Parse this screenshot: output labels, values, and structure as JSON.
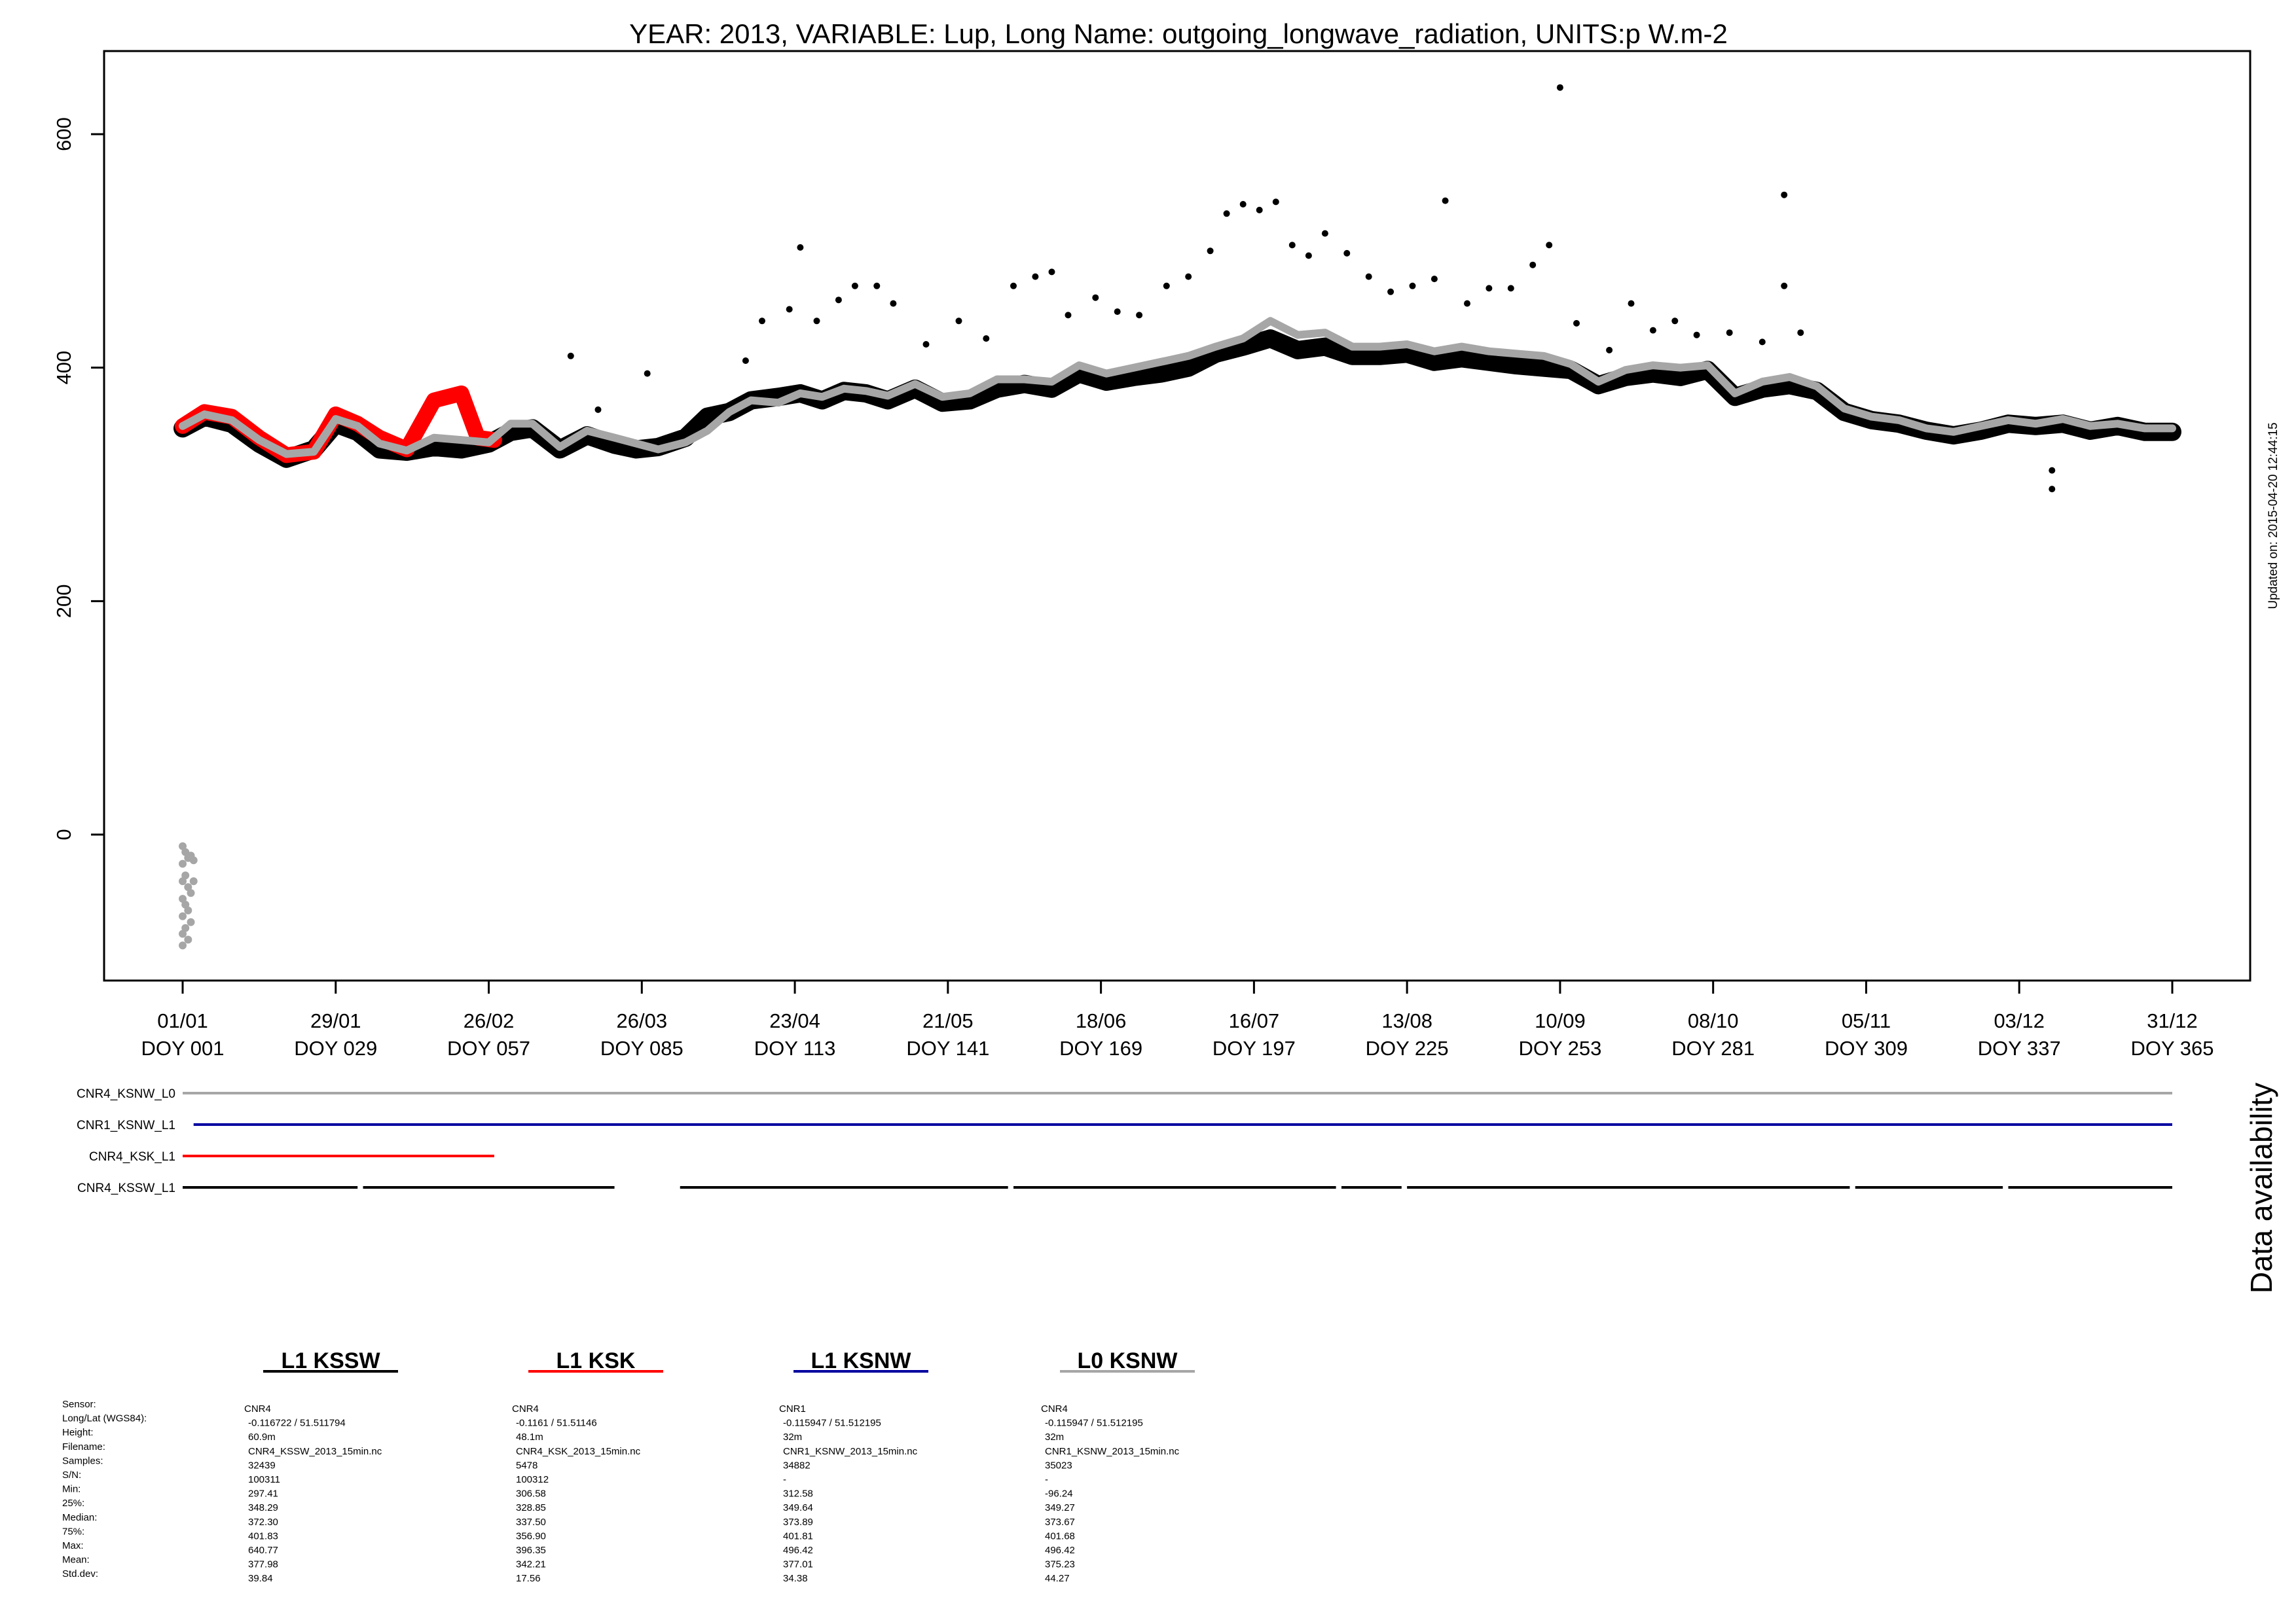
{
  "chart_data": {
    "type": "scatter",
    "title": "YEAR: 2013, VARIABLE: Lup, Long Name: outgoing_longwave_radiation, UNITS:p W.m-2",
    "ylim": [
      -155,
      670
    ],
    "y_ticks": [
      "0",
      "200",
      "400",
      "600"
    ],
    "y_tick_values": [
      0,
      200,
      400,
      600
    ],
    "xlim": [
      -8,
      376
    ],
    "x_ticks": [
      {
        "doy": 1,
        "date": "01/01",
        "label": "DOY 001"
      },
      {
        "doy": 29,
        "date": "29/01",
        "label": "DOY 029"
      },
      {
        "doy": 57,
        "date": "26/02",
        "label": "DOY 057"
      },
      {
        "doy": 85,
        "date": "26/03",
        "label": "DOY 085"
      },
      {
        "doy": 113,
        "date": "23/04",
        "label": "DOY 113"
      },
      {
        "doy": 141,
        "date": "21/05",
        "label": "DOY 141"
      },
      {
        "doy": 169,
        "date": "18/06",
        "label": "DOY 169"
      },
      {
        "doy": 197,
        "date": "16/07",
        "label": "DOY 197"
      },
      {
        "doy": 225,
        "date": "13/08",
        "label": "DOY 225"
      },
      {
        "doy": 253,
        "date": "10/09",
        "label": "DOY 253"
      },
      {
        "doy": 281,
        "date": "08/10",
        "label": "DOY 281"
      },
      {
        "doy": 309,
        "date": "05/11",
        "label": "DOY 309"
      },
      {
        "doy": 337,
        "date": "03/12",
        "label": "DOY 337"
      },
      {
        "doy": 365,
        "date": "31/12",
        "label": "DOY 365"
      }
    ],
    "grid": false,
    "updated_label": "Updated on: 2015-04-20 12:44:15",
    "series": [
      {
        "name": "CNR4_KSSW_L1",
        "color": "#000000",
        "band_width": 28,
        "points": [
          [
            1,
            348
          ],
          [
            5,
            358
          ],
          [
            10,
            352
          ],
          [
            15,
            335
          ],
          [
            20,
            322
          ],
          [
            25,
            330
          ],
          [
            29,
            352
          ],
          [
            33,
            345
          ],
          [
            37,
            330
          ],
          [
            42,
            328
          ],
          [
            47,
            332
          ],
          [
            52,
            330
          ],
          [
            57,
            335
          ],
          [
            61,
            345
          ],
          [
            65,
            348
          ],
          [
            70,
            330
          ],
          [
            75,
            342
          ],
          [
            80,
            334
          ],
          [
            84,
            330
          ],
          [
            88,
            332
          ],
          [
            93,
            340
          ],
          [
            97,
            358
          ],
          [
            101,
            362
          ],
          [
            105,
            372
          ],
          [
            110,
            375
          ],
          [
            114,
            378
          ],
          [
            118,
            372
          ],
          [
            122,
            380
          ],
          [
            126,
            378
          ],
          [
            130,
            372
          ],
          [
            135,
            382
          ],
          [
            140,
            370
          ],
          [
            145,
            372
          ],
          [
            150,
            382
          ],
          [
            155,
            386
          ],
          [
            160,
            382
          ],
          [
            165,
            395
          ],
          [
            170,
            388
          ],
          [
            175,
            392
          ],
          [
            180,
            395
          ],
          [
            185,
            400
          ],
          [
            190,
            412
          ],
          [
            195,
            418
          ],
          [
            200,
            425
          ],
          [
            205,
            415
          ],
          [
            210,
            418
          ],
          [
            215,
            410
          ],
          [
            220,
            410
          ],
          [
            225,
            412
          ],
          [
            230,
            405
          ],
          [
            235,
            408
          ],
          [
            240,
            405
          ],
          [
            245,
            402
          ],
          [
            250,
            400
          ],
          [
            255,
            398
          ],
          [
            260,
            385
          ],
          [
            265,
            392
          ],
          [
            270,
            395
          ],
          [
            275,
            392
          ],
          [
            280,
            398
          ],
          [
            285,
            375
          ],
          [
            290,
            382
          ],
          [
            295,
            385
          ],
          [
            300,
            380
          ],
          [
            305,
            362
          ],
          [
            310,
            355
          ],
          [
            315,
            352
          ],
          [
            320,
            346
          ],
          [
            325,
            342
          ],
          [
            330,
            346
          ],
          [
            335,
            352
          ],
          [
            340,
            350
          ],
          [
            345,
            352
          ],
          [
            350,
            346
          ],
          [
            355,
            350
          ],
          [
            360,
            345
          ],
          [
            365,
            345
          ]
        ]
      },
      {
        "name": "CNR4_KSK_L1",
        "color": "#ff0000",
        "band_width": 24,
        "points": [
          [
            1,
            350
          ],
          [
            5,
            362
          ],
          [
            10,
            358
          ],
          [
            15,
            340
          ],
          [
            20,
            325
          ],
          [
            25,
            328
          ],
          [
            29,
            360
          ],
          [
            33,
            352
          ],
          [
            37,
            340
          ],
          [
            42,
            330
          ],
          [
            47,
            372
          ],
          [
            52,
            378
          ],
          [
            55,
            340
          ],
          [
            58,
            338
          ]
        ]
      },
      {
        "name": "CNR4_KSNW_L0",
        "color": "#a6a6a6",
        "band_width": 12,
        "points": [
          [
            1,
            350
          ],
          [
            5,
            360
          ],
          [
            10,
            355
          ],
          [
            15,
            338
          ],
          [
            20,
            326
          ],
          [
            25,
            328
          ],
          [
            29,
            356
          ],
          [
            33,
            350
          ],
          [
            37,
            335
          ],
          [
            42,
            329
          ],
          [
            47,
            340
          ],
          [
            52,
            338
          ],
          [
            57,
            336
          ],
          [
            61,
            352
          ],
          [
            65,
            352
          ],
          [
            70,
            332
          ],
          [
            75,
            346
          ],
          [
            80,
            340
          ],
          [
            84,
            335
          ],
          [
            88,
            330
          ],
          [
            93,
            336
          ],
          [
            97,
            346
          ],
          [
            101,
            362
          ],
          [
            105,
            372
          ],
          [
            110,
            370
          ],
          [
            114,
            378
          ],
          [
            118,
            375
          ],
          [
            122,
            382
          ],
          [
            126,
            380
          ],
          [
            130,
            376
          ],
          [
            135,
            386
          ],
          [
            140,
            375
          ],
          [
            145,
            378
          ],
          [
            150,
            390
          ],
          [
            155,
            390
          ],
          [
            160,
            388
          ],
          [
            165,
            402
          ],
          [
            170,
            395
          ],
          [
            175,
            400
          ],
          [
            180,
            405
          ],
          [
            185,
            410
          ],
          [
            190,
            418
          ],
          [
            195,
            425
          ],
          [
            200,
            440
          ],
          [
            205,
            428
          ],
          [
            210,
            430
          ],
          [
            215,
            418
          ],
          [
            220,
            418
          ],
          [
            225,
            420
          ],
          [
            230,
            414
          ],
          [
            235,
            418
          ],
          [
            240,
            414
          ],
          [
            245,
            412
          ],
          [
            250,
            410
          ],
          [
            255,
            403
          ],
          [
            260,
            388
          ],
          [
            265,
            398
          ],
          [
            270,
            402
          ],
          [
            275,
            400
          ],
          [
            280,
            402
          ],
          [
            285,
            378
          ],
          [
            290,
            388
          ],
          [
            295,
            392
          ],
          [
            300,
            384
          ],
          [
            305,
            365
          ],
          [
            310,
            358
          ],
          [
            315,
            355
          ],
          [
            320,
            348
          ],
          [
            325,
            345
          ],
          [
            330,
            350
          ],
          [
            335,
            355
          ],
          [
            340,
            352
          ],
          [
            345,
            356
          ],
          [
            350,
            350
          ],
          [
            355,
            352
          ],
          [
            360,
            348
          ],
          [
            365,
            348
          ]
        ]
      }
    ],
    "spikes": {
      "color": "#000000",
      "points": [
        [
          72,
          410
        ],
        [
          77,
          364
        ],
        [
          86,
          395
        ],
        [
          104,
          406
        ],
        [
          107,
          440
        ],
        [
          112,
          450
        ],
        [
          114,
          503
        ],
        [
          117,
          440
        ],
        [
          121,
          458
        ],
        [
          124,
          470
        ],
        [
          128,
          470
        ],
        [
          131,
          455
        ],
        [
          137,
          420
        ],
        [
          143,
          440
        ],
        [
          148,
          425
        ],
        [
          153,
          470
        ],
        [
          157,
          478
        ],
        [
          160,
          482
        ],
        [
          163,
          445
        ],
        [
          168,
          460
        ],
        [
          172,
          448
        ],
        [
          176,
          445
        ],
        [
          181,
          470
        ],
        [
          185,
          478
        ],
        [
          189,
          500
        ],
        [
          192,
          532
        ],
        [
          195,
          540
        ],
        [
          198,
          535
        ],
        [
          201,
          542
        ],
        [
          204,
          505
        ],
        [
          207,
          496
        ],
        [
          210,
          515
        ],
        [
          214,
          498
        ],
        [
          218,
          478
        ],
        [
          222,
          465
        ],
        [
          226,
          470
        ],
        [
          230,
          476
        ],
        [
          232,
          543
        ],
        [
          236,
          455
        ],
        [
          240,
          468
        ],
        [
          244,
          468
        ],
        [
          248,
          488
        ],
        [
          251,
          505
        ],
        [
          253,
          640
        ],
        [
          256,
          438
        ],
        [
          262,
          415
        ],
        [
          266,
          455
        ],
        [
          270,
          432
        ],
        [
          274,
          440
        ],
        [
          278,
          428
        ],
        [
          284,
          430
        ],
        [
          290,
          422
        ],
        [
          294,
          548
        ],
        [
          294,
          470
        ],
        [
          297,
          430
        ]
      ]
    },
    "low_points": {
      "color": "#000000",
      "points": [
        [
          343,
          312
        ],
        [
          343,
          296
        ]
      ]
    },
    "negative_cluster": {
      "color": "#a6a6a6",
      "points": [
        [
          1,
          -10
        ],
        [
          1,
          -25
        ],
        [
          1,
          -40
        ],
        [
          1,
          -55
        ],
        [
          1,
          -70
        ],
        [
          1,
          -85
        ],
        [
          1,
          -95
        ],
        [
          1.5,
          -15
        ],
        [
          1.5,
          -35
        ],
        [
          1.5,
          -60
        ],
        [
          1.5,
          -80
        ],
        [
          2,
          -20
        ],
        [
          2,
          -45
        ],
        [
          2,
          -65
        ],
        [
          2,
          -90
        ],
        [
          2.5,
          -18
        ],
        [
          2.5,
          -50
        ],
        [
          2.5,
          -75
        ],
        [
          3,
          -22
        ],
        [
          3,
          -40
        ]
      ]
    }
  },
  "availability": {
    "side_label": "Data availability",
    "rows": [
      {
        "label": "CNR4_KSNW_L0",
        "color": "#a6a6a6",
        "segments": [
          [
            1,
            365
          ]
        ]
      },
      {
        "label": "CNR1_KSNW_L1",
        "color": "#0000a0",
        "segments": [
          [
            3,
            365
          ]
        ]
      },
      {
        "label": "CNR4_KSK_L1",
        "color": "#ff0000",
        "segments": [
          [
            1,
            58
          ]
        ]
      },
      {
        "label": "CNR4_KSSW_L1",
        "color": "#000000",
        "segments": [
          [
            1,
            33
          ],
          [
            34,
            80
          ],
          [
            92,
            152
          ],
          [
            153,
            212
          ],
          [
            213,
            224
          ],
          [
            225,
            306
          ],
          [
            307,
            334
          ],
          [
            335,
            365
          ]
        ]
      }
    ]
  },
  "legend": [
    {
      "title": "L1 KSSW",
      "color": "#000000"
    },
    {
      "title": "L1 KSK",
      "color": "#ff0000"
    },
    {
      "title": "L1 KSNW",
      "color": "#0000a0"
    },
    {
      "title": "L0 KSNW",
      "color": "#a6a6a6"
    }
  ],
  "info_labels": [
    "Sensor:",
    "Long/Lat (WGS84):",
    "Height:",
    "Filename:",
    "Samples:",
    "S/N:",
    "Min:",
    "25%:",
    "Median:",
    "75%:",
    "Max:",
    "Mean:",
    "Std.dev:"
  ],
  "info_columns": [
    [
      "CNR4",
      "-0.116722 / 51.511794",
      "60.9m",
      "CNR4_KSSW_2013_15min.nc",
      "32439",
      "100311",
      "297.41",
      "348.29",
      "372.30",
      "401.83",
      "640.77",
      "377.98",
      "39.84"
    ],
    [
      "CNR4",
      "-0.1161 / 51.51146",
      "48.1m",
      "CNR4_KSK_2013_15min.nc",
      "5478",
      "100312",
      "306.58",
      "328.85",
      "337.50",
      "356.90",
      "396.35",
      "342.21",
      "17.56"
    ],
    [
      "CNR1",
      "-0.115947 / 51.512195",
      "32m",
      "CNR1_KSNW_2013_15min.nc",
      "34882",
      "-",
      "312.58",
      "349.64",
      "373.89",
      "401.81",
      "496.42",
      "377.01",
      "34.38"
    ],
    [
      "CNR4",
      "-0.115947 / 51.512195",
      "32m",
      "CNR1_KSNW_2013_15min.nc",
      "35023",
      "-",
      "-96.24",
      "349.27",
      "373.67",
      "401.68",
      "496.42",
      "375.23",
      "44.27"
    ]
  ]
}
